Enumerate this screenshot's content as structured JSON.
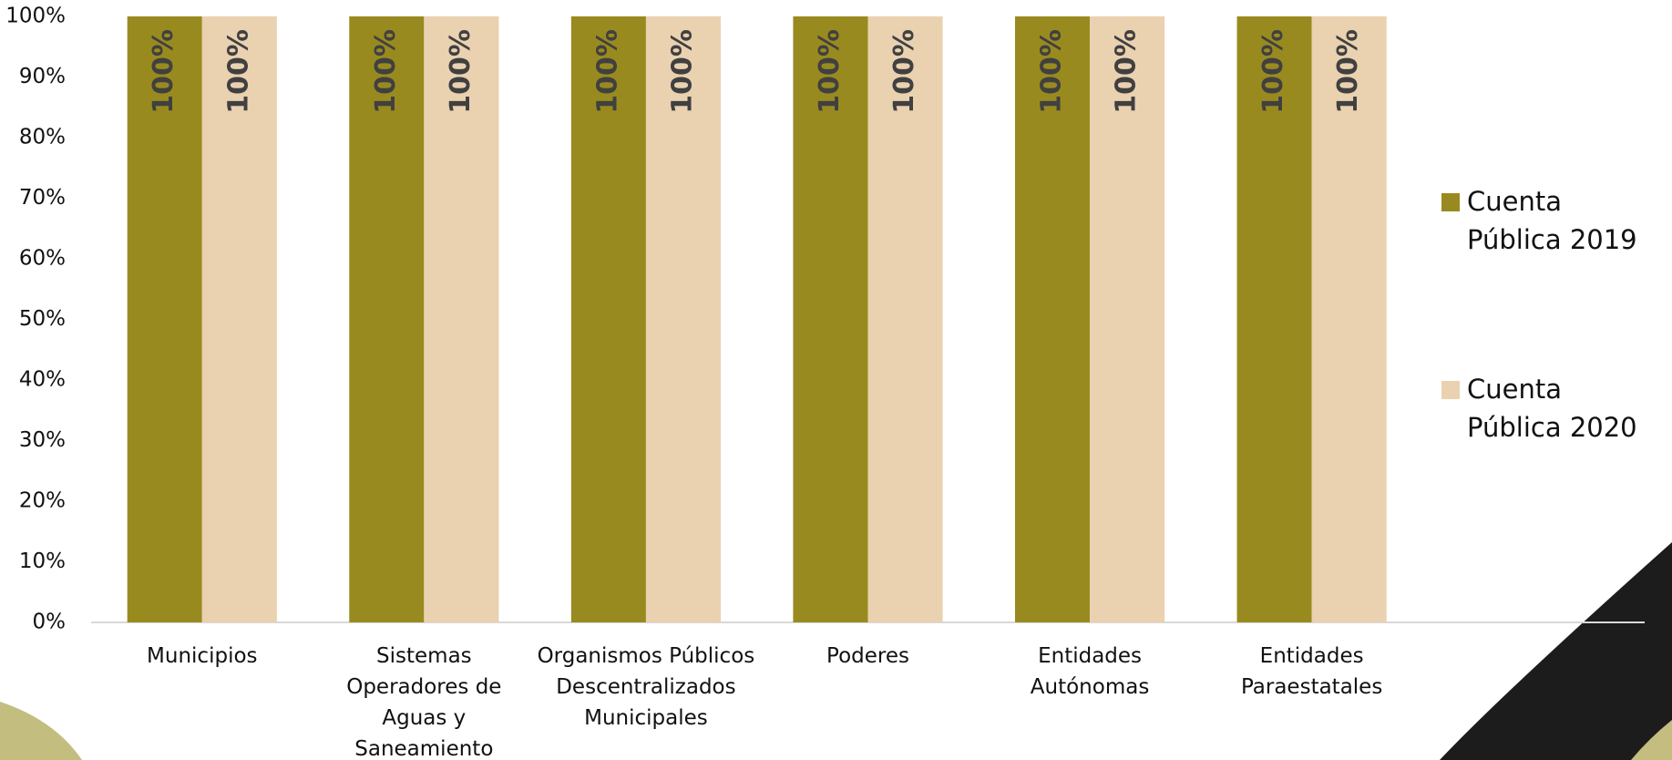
{
  "chart_data": {
    "type": "bar",
    "categories": [
      "Municipios",
      "Sistemas Operadores de Aguas y Saneamiento",
      "Organismos Públicos Descentralizados Municipales",
      "Poderes",
      "Entidades Autónomas",
      "Entidades Paraestatales",
      null
    ],
    "series": [
      {
        "name": "Cuenta Pública 2019",
        "color": "#998a1f",
        "values": [
          100,
          100,
          100,
          100,
          100,
          100,
          null
        ],
        "value_labels": [
          "100%",
          "100%",
          "100%",
          "100%",
          "100%",
          "100%",
          null
        ]
      },
      {
        "name": "Cuenta Pública 2020",
        "color": "#ead1b0",
        "values": [
          100,
          100,
          100,
          100,
          100,
          100,
          null
        ],
        "value_labels": [
          "100%",
          "100%",
          "100%",
          "100%",
          "100%",
          "100%",
          null
        ]
      }
    ],
    "ylim": [
      0,
      100
    ],
    "yticks": [
      {
        "value": 0,
        "label": "0%"
      },
      {
        "value": 10,
        "label": "10%"
      },
      {
        "value": 20,
        "label": "20%"
      },
      {
        "value": 30,
        "label": "30%"
      },
      {
        "value": 40,
        "label": "40%"
      },
      {
        "value": 50,
        "label": "50%"
      },
      {
        "value": 60,
        "label": "60%"
      },
      {
        "value": 70,
        "label": "70%"
      },
      {
        "value": 80,
        "label": "80%"
      },
      {
        "value": 90,
        "label": "90%"
      },
      {
        "value": 100,
        "label": "100%"
      }
    ],
    "grid": false,
    "legend": "right"
  }
}
